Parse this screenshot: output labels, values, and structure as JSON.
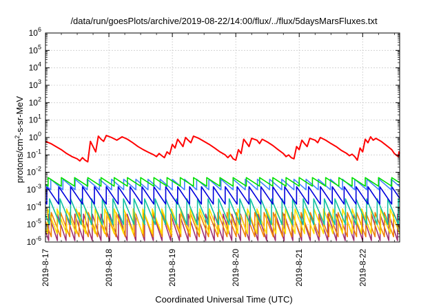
{
  "chart_data": {
    "type": "line",
    "title": "/data/run/goesPlots/archive/2019-08-22/14:00/flux/../flux/5daysMarsFluxes.txt",
    "xlabel": "Coordinated Universal Time (UTC)",
    "ylabel_prefix": "protons/cm",
    "ylabel_sup": "2",
    "ylabel_suffix": "-s-sr-MeV",
    "x_range": [
      "2019-08-17T00:00",
      "2019-08-22T14:00"
    ],
    "x_ticks": [
      "2019-8-17",
      "2019-8-18",
      "2019-8-19",
      "2019-8-20",
      "2019-8-21",
      "2019-8-22"
    ],
    "y_scale": "log",
    "y_range": [
      1e-06,
      1000000.0
    ],
    "y_ticks": [
      {
        "base": "10",
        "exp": "-6"
      },
      {
        "base": "10",
        "exp": "-5"
      },
      {
        "base": "10",
        "exp": "-4"
      },
      {
        "base": "10",
        "exp": "-3"
      },
      {
        "base": "10",
        "exp": "-2"
      },
      {
        "base": "10",
        "exp": "-1"
      },
      {
        "base": "10",
        "exp": "0"
      },
      {
        "base": "10",
        "exp": "1"
      },
      {
        "base": "10",
        "exp": "2"
      },
      {
        "base": "10",
        "exp": "3"
      },
      {
        "base": "10",
        "exp": "4"
      },
      {
        "base": "10",
        "exp": "5"
      },
      {
        "base": "10",
        "exp": "6"
      }
    ],
    "grid": true,
    "series": [
      {
        "color": "#ff0000",
        "width": 2,
        "points": [
          [
            "2019-08-17T00:00",
            0.6
          ],
          [
            "2019-08-17T02:00",
            0.45
          ],
          [
            "2019-08-17T04:00",
            0.3
          ],
          [
            "2019-08-17T06:00",
            0.2
          ],
          [
            "2019-08-17T08:00",
            0.12
          ],
          [
            "2019-08-17T10:00",
            0.08
          ],
          [
            "2019-08-17T12:00",
            0.06
          ],
          [
            "2019-08-17T13:00",
            0.045
          ],
          [
            "2019-08-17T14:00",
            0.07
          ],
          [
            "2019-08-17T15:00",
            0.05
          ],
          [
            "2019-08-17T16:00",
            0.04
          ],
          [
            "2019-08-17T17:00",
            0.6
          ],
          [
            "2019-08-17T18:00",
            0.3
          ],
          [
            "2019-08-17T19:00",
            0.15
          ],
          [
            "2019-08-17T20:00",
            1.2
          ],
          [
            "2019-08-17T21:00",
            0.8
          ],
          [
            "2019-08-17T22:00",
            0.6
          ],
          [
            "2019-08-17T23:00",
            1.3
          ],
          [
            "2019-08-18T01:00",
            1.0
          ],
          [
            "2019-08-18T03:00",
            0.7
          ],
          [
            "2019-08-18T05:00",
            1.1
          ],
          [
            "2019-08-18T07:00",
            0.8
          ],
          [
            "2019-08-18T09:00",
            0.5
          ],
          [
            "2019-08-18T11:00",
            0.3
          ],
          [
            "2019-08-18T13:00",
            0.2
          ],
          [
            "2019-08-18T15:00",
            0.14
          ],
          [
            "2019-08-18T17:00",
            0.1
          ],
          [
            "2019-08-18T18:00",
            0.08
          ],
          [
            "2019-08-18T19:00",
            0.12
          ],
          [
            "2019-08-18T20:00",
            0.09
          ],
          [
            "2019-08-18T21:00",
            0.07
          ],
          [
            "2019-08-18T22:00",
            0.15
          ],
          [
            "2019-08-18T23:00",
            0.11
          ],
          [
            "2019-08-19T00:00",
            0.4
          ],
          [
            "2019-08-19T01:00",
            0.25
          ],
          [
            "2019-08-19T02:00",
            0.8
          ],
          [
            "2019-08-19T03:00",
            0.5
          ],
          [
            "2019-08-19T04:00",
            0.3
          ],
          [
            "2019-08-19T05:00",
            1.0
          ],
          [
            "2019-08-19T06:00",
            0.7
          ],
          [
            "2019-08-19T07:00",
            0.5
          ],
          [
            "2019-08-19T08:00",
            1.2
          ],
          [
            "2019-08-19T10:00",
            0.9
          ],
          [
            "2019-08-19T12:00",
            0.6
          ],
          [
            "2019-08-19T14:00",
            0.4
          ],
          [
            "2019-08-19T16:00",
            0.25
          ],
          [
            "2019-08-19T18:00",
            0.15
          ],
          [
            "2019-08-19T20:00",
            0.1
          ],
          [
            "2019-08-19T21:00",
            0.07
          ],
          [
            "2019-08-19T22:00",
            0.1
          ],
          [
            "2019-08-19T23:00",
            0.06
          ],
          [
            "2019-08-20T00:00",
            0.05
          ],
          [
            "2019-08-20T01:00",
            0.2
          ],
          [
            "2019-08-20T02:00",
            0.12
          ],
          [
            "2019-08-20T03:00",
            0.8
          ],
          [
            "2019-08-20T04:00",
            0.5
          ],
          [
            "2019-08-20T05:00",
            0.3
          ],
          [
            "2019-08-20T06:00",
            0.9
          ],
          [
            "2019-08-20T08:00",
            0.7
          ],
          [
            "2019-08-20T09:00",
            0.45
          ],
          [
            "2019-08-20T10:00",
            0.8
          ],
          [
            "2019-08-20T12:00",
            0.55
          ],
          [
            "2019-08-20T14:00",
            0.35
          ],
          [
            "2019-08-20T16:00",
            0.2
          ],
          [
            "2019-08-20T18:00",
            0.12
          ],
          [
            "2019-08-20T19:00",
            0.08
          ],
          [
            "2019-08-20T20:00",
            0.1
          ],
          [
            "2019-08-20T21:00",
            0.07
          ],
          [
            "2019-08-20T22:00",
            0.06
          ],
          [
            "2019-08-20T23:00",
            0.3
          ],
          [
            "2019-08-21T00:00",
            0.2
          ],
          [
            "2019-08-21T01:00",
            0.7
          ],
          [
            "2019-08-21T02:00",
            0.45
          ],
          [
            "2019-08-21T03:00",
            0.3
          ],
          [
            "2019-08-21T04:00",
            0.9
          ],
          [
            "2019-08-21T06:00",
            0.7
          ],
          [
            "2019-08-21T07:00",
            0.5
          ],
          [
            "2019-08-21T08:00",
            1.0
          ],
          [
            "2019-08-21T10:00",
            0.7
          ],
          [
            "2019-08-21T12:00",
            0.45
          ],
          [
            "2019-08-21T14:00",
            0.3
          ],
          [
            "2019-08-21T16:00",
            0.18
          ],
          [
            "2019-08-21T18:00",
            0.12
          ],
          [
            "2019-08-21T19:00",
            0.09
          ],
          [
            "2019-08-21T20:00",
            0.11
          ],
          [
            "2019-08-21T21:00",
            0.08
          ],
          [
            "2019-08-21T22:00",
            0.05
          ],
          [
            "2019-08-21T23:00",
            0.25
          ],
          [
            "2019-08-22T00:00",
            0.15
          ],
          [
            "2019-08-22T01:00",
            0.8
          ],
          [
            "2019-08-22T02:00",
            0.5
          ],
          [
            "2019-08-22T03:00",
            1.1
          ],
          [
            "2019-08-22T04:00",
            0.7
          ],
          [
            "2019-08-22T05:00",
            0.9
          ],
          [
            "2019-08-22T07:00",
            0.6
          ],
          [
            "2019-08-22T09:00",
            0.35
          ],
          [
            "2019-08-22T11:00",
            0.2
          ],
          [
            "2019-08-22T12:00",
            0.12
          ],
          [
            "2019-08-22T13:00",
            0.09
          ],
          [
            "2019-08-22T13:30",
            0.08
          ],
          [
            "2019-08-22T13:45",
            0.15
          ],
          [
            "2019-08-22T14:00",
            0.12
          ]
        ]
      },
      {
        "color": "#00e000",
        "shape": "sawtooth",
        "period_hours": 5.0,
        "phase_hours": 1.0,
        "high": 0.005,
        "low": 0.0016
      },
      {
        "color": "#4080ff",
        "shape": "sawtooth",
        "period_hours": 4.6,
        "phase_hours": 2.0,
        "high": 0.004,
        "low": 0.001
      },
      {
        "color": "#0000dd",
        "shape": "sawtooth",
        "period_hours": 4.5,
        "phase_hours": 0.5,
        "high": 0.0015,
        "low": 0.00015
      },
      {
        "color": "#10c0a0",
        "shape": "sawtooth",
        "period_hours": 4.0,
        "phase_hours": 1.5,
        "high": 0.0003,
        "low": 1e-05
      },
      {
        "color": "#ffe000",
        "shape": "sawtooth",
        "period_hours": 3.6,
        "phase_hours": 0.8,
        "high": 8e-05,
        "low": 3e-06
      },
      {
        "color": "#f08000",
        "shape": "sawtooth",
        "period_hours": 3.5,
        "phase_hours": 2.2,
        "high": 5e-05,
        "low": 2e-06
      },
      {
        "color": "#a03070",
        "shape": "sawtooth",
        "period_hours": 3.3,
        "phase_hours": 1.2,
        "high": 4e-05,
        "low": 1.2e-06
      }
    ]
  }
}
